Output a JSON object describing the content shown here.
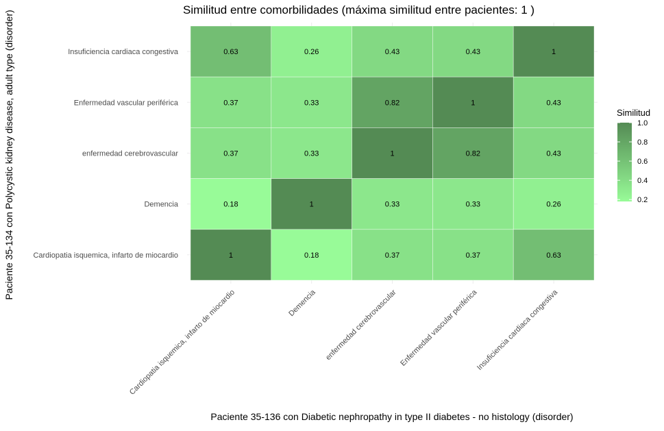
{
  "chart_data": {
    "type": "heatmap",
    "title": "Similitud entre comorbilidades (máxima similitud entre pacientes:  1 )",
    "xlabel": "Paciente 35-136 con Diabetic nephropathy in type II diabetes - no histology (disorder)",
    "ylabel": "Paciente 35-134 con Polycystic kidney disease, adult type (disorder)",
    "x_categories": [
      "Cardiopatia isquemica, infarto de miocardio",
      "Demencia",
      "enfermedad cerebrovascular",
      "Enfermedad vascular periférica",
      "Insuficiencia cardiaca congestiva"
    ],
    "y_categories": [
      "Insuficiencia cardiaca congestiva",
      "Enfermedad vascular periférica",
      "enfermedad cerebrovascular",
      "Demencia",
      "Cardiopatia isquemica, infarto de miocardio"
    ],
    "values": [
      [
        0.63,
        0.26,
        0.43,
        0.43,
        1
      ],
      [
        0.37,
        0.33,
        0.82,
        1,
        0.43
      ],
      [
        0.37,
        0.33,
        1,
        0.82,
        0.43
      ],
      [
        0.18,
        1,
        0.33,
        0.33,
        0.26
      ],
      [
        1,
        0.18,
        0.37,
        0.37,
        0.63
      ]
    ],
    "labels": [
      [
        "0.63",
        "0.26",
        "0.43",
        "0.43",
        "1"
      ],
      [
        "0.37",
        "0.33",
        "0.82",
        "1",
        "0.43"
      ],
      [
        "0.37",
        "0.33",
        "1",
        "0.82",
        "0.43"
      ],
      [
        "0.18",
        "1",
        "0.33",
        "0.33",
        "0.26"
      ],
      [
        "1",
        "0.18",
        "0.37",
        "0.37",
        "0.63"
      ]
    ],
    "legend": {
      "title": "Similitud",
      "ticks": [
        "1.0",
        "0.8",
        "0.6",
        "0.4",
        "0.2"
      ],
      "tick_values": [
        1.0,
        0.8,
        0.6,
        0.4,
        0.2
      ],
      "range": [
        0.18,
        1
      ],
      "placement": "right"
    },
    "colors": {
      "low": "#98fb98",
      "high": "#548b54",
      "grid": "#ebebeb",
      "text": "#000000"
    }
  }
}
